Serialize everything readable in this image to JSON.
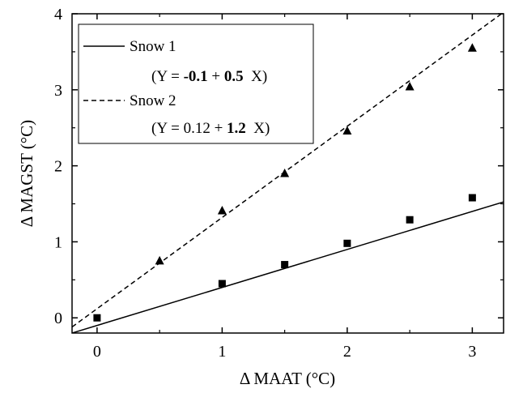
{
  "chart_data": {
    "type": "scatter",
    "xlabel": "Δ MAAT (°C)",
    "ylabel": "Δ MAGST (°C)",
    "xlim": [
      -0.2,
      3.25
    ],
    "ylim": [
      -0.2,
      4.0
    ],
    "xticks": [
      0,
      1,
      2,
      3
    ],
    "yticks": [
      0,
      1,
      2,
      3,
      4
    ],
    "grid": false,
    "legend_position": "top-left",
    "series": [
      {
        "name": "Snow 1",
        "marker": "square",
        "line_style": "solid",
        "color": "#000000",
        "equation_parts": [
          "(Y = ",
          "-0.1",
          " + ",
          "0.5",
          "  X)"
        ],
        "fit": {
          "intercept": -0.1,
          "slope": 0.5
        },
        "points": [
          {
            "x": 0,
            "y": 0.0
          },
          {
            "x": 1,
            "y": 0.45
          },
          {
            "x": 1.5,
            "y": 0.7
          },
          {
            "x": 2,
            "y": 0.98
          },
          {
            "x": 2.5,
            "y": 1.29
          },
          {
            "x": 3,
            "y": 1.58
          }
        ]
      },
      {
        "name": "Snow 2",
        "marker": "triangle",
        "line_style": "dashed",
        "color": "#000000",
        "equation_parts": [
          "(Y = ",
          "0.12",
          " + ",
          "1.2",
          "  X)"
        ],
        "fit": {
          "intercept": 0.12,
          "slope": 1.2
        },
        "points": [
          {
            "x": 0.5,
            "y": 0.75
          },
          {
            "x": 1,
            "y": 1.41
          },
          {
            "x": 1.5,
            "y": 1.9
          },
          {
            "x": 2,
            "y": 2.46
          },
          {
            "x": 2.5,
            "y": 3.04
          },
          {
            "x": 3,
            "y": 3.55
          }
        ]
      }
    ]
  }
}
